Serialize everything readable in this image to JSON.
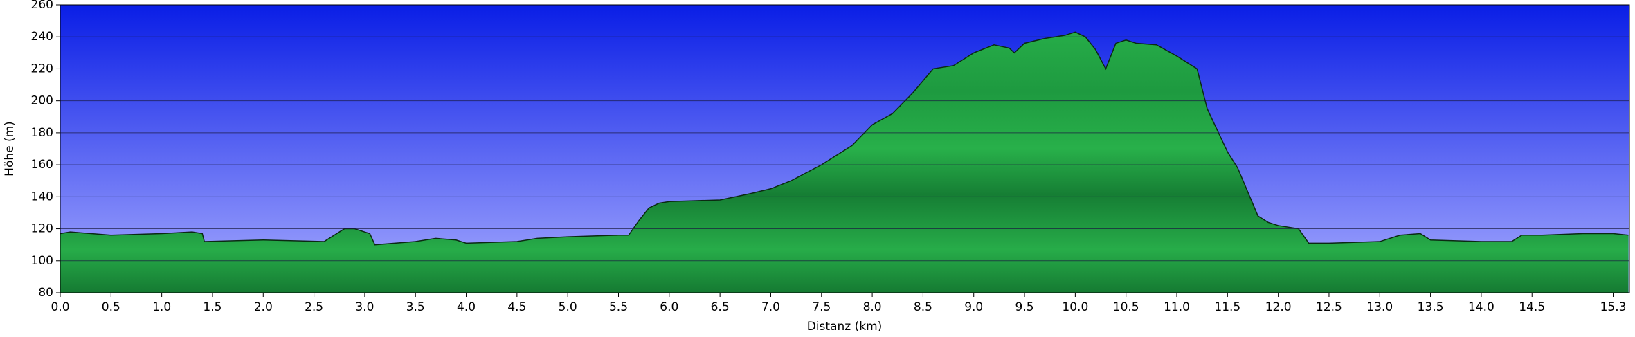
{
  "chart_data": {
    "type": "area",
    "x_label": "Distanz   (km)",
    "y_label": "Höhe (m)",
    "color": "#22a84a",
    "x": [
      0,
      0.1,
      0.5,
      1.0,
      1.3,
      1.4,
      1.42,
      2.0,
      2.6,
      2.7,
      2.8,
      2.9,
      3.0,
      3.05,
      3.1,
      3.5,
      3.7,
      3.9,
      4.0,
      4.5,
      4.7,
      5.0,
      5.5,
      5.6,
      5.7,
      5.8,
      5.9,
      6.0,
      6.5,
      6.8,
      7.0,
      7.2,
      7.5,
      7.8,
      8.0,
      8.2,
      8.4,
      8.6,
      8.8,
      9.0,
      9.2,
      9.35,
      9.4,
      9.5,
      9.7,
      9.8,
      9.9,
      10.0,
      10.1,
      10.2,
      10.3,
      10.4,
      10.5,
      10.6,
      10.8,
      11.0,
      11.2,
      11.3,
      11.5,
      11.6,
      11.8,
      11.9,
      12.0,
      12.2,
      12.3,
      12.5,
      13.0,
      13.2,
      13.4,
      13.5,
      14.0,
      14.3,
      14.4,
      14.6,
      15.0,
      15.3,
      15.45
    ],
    "values": [
      117,
      118,
      116,
      117,
      118,
      117,
      112,
      113,
      112,
      116,
      120,
      120,
      118,
      117,
      110,
      112,
      114,
      113,
      111,
      112,
      114,
      115,
      116,
      116,
      125,
      133,
      136,
      137,
      138,
      142,
      145,
      150,
      160,
      172,
      185,
      192,
      205,
      220,
      222,
      230,
      235,
      233,
      230,
      236,
      239,
      240,
      241,
      243,
      240,
      232,
      220,
      236,
      238,
      236,
      235,
      228,
      220,
      195,
      168,
      158,
      128,
      124,
      122,
      120,
      111,
      111,
      112,
      116,
      117,
      113,
      112,
      112,
      116,
      116,
      117,
      117,
      116
    ],
    "xlim": [
      0,
      15.46
    ],
    "ylim": [
      80,
      260
    ],
    "xticks": [
      {
        "value": 0,
        "label": "0.0"
      },
      0.5,
      {
        "value": 1,
        "label": "1.0"
      },
      1.5,
      {
        "value": 2,
        "label": "2.0"
      },
      2.5,
      {
        "value": 3,
        "label": "3.0"
      },
      3.5,
      {
        "value": 4,
        "label": "4.0"
      },
      4.5,
      {
        "value": 5,
        "label": "5.0"
      },
      5.5,
      {
        "value": 6,
        "label": "6.0"
      },
      6.5,
      {
        "value": 7,
        "label": "7.0"
      },
      7.5,
      {
        "value": 8,
        "label": "8.0"
      },
      8.5,
      {
        "value": 9,
        "label": "9.0"
      },
      9.5,
      {
        "value": 10,
        "label": "10.0"
      },
      10.5,
      {
        "value": 11,
        "label": "11.0"
      },
      11.5,
      {
        "value": 12,
        "label": "12.0"
      },
      12.5,
      {
        "value": 13,
        "label": "13.0"
      },
      13.5,
      {
        "value": 14,
        "label": "14.0"
      },
      14.5,
      15.3
    ],
    "yticks": [
      80,
      100,
      120,
      140,
      160,
      180,
      200,
      220,
      240,
      260
    ],
    "grid": true
  }
}
